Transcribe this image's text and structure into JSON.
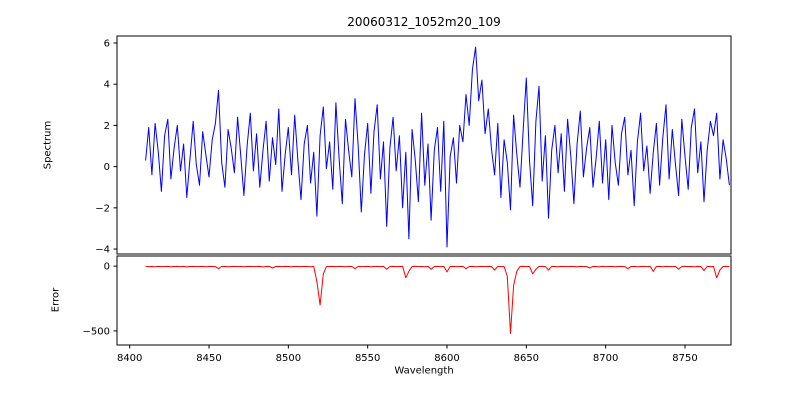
{
  "figure": {
    "title": "20060312_1052m20_109",
    "xlabel": "Wavelength",
    "background": "#ffffff",
    "xticks": [
      8400,
      8450,
      8500,
      8550,
      8600,
      8650,
      8700,
      8750
    ]
  },
  "chart_data": [
    {
      "type": "line",
      "name": "spectrum",
      "ylabel": "Spectrum",
      "color": "#0000ff",
      "grid": false,
      "legend": null,
      "xlim": [
        8392,
        8779
      ],
      "ylim": [
        -4.24,
        6.34
      ],
      "yticks": [
        -4,
        -2,
        0,
        2,
        4,
        6
      ],
      "x_start": 8410,
      "x_step": 2,
      "values": [
        0.3,
        1.9,
        -0.4,
        2.1,
        0.7,
        -1.2,
        1.5,
        2.3,
        -0.6,
        0.9,
        2.0,
        -0.2,
        1.1,
        -1.5,
        0.4,
        2.2,
        0.1,
        -0.9,
        1.7,
        0.6,
        -0.5,
        1.3,
        2.1,
        3.7,
        0.2,
        -1.0,
        1.8,
        0.9,
        -0.3,
        2.4,
        0.5,
        -1.4,
        1.0,
        2.6,
        -0.2,
        1.6,
        -1.0,
        0.8,
        2.2,
        -0.7,
        1.4,
        0.1,
        2.8,
        -1.2,
        0.6,
        1.9,
        -0.4,
        2.5,
        0.3,
        -1.6,
        1.1,
        2.0,
        -0.8,
        0.7,
        -2.4,
        1.5,
        2.9,
        -0.1,
        1.2,
        -1.1,
        3.1,
        0.4,
        -1.8,
        2.3,
        0.8,
        -0.5,
        3.3,
        1.0,
        -2.2,
        0.6,
        2.1,
        -1.3,
        1.7,
        3.0,
        -0.6,
        1.2,
        -2.9,
        0.9,
        2.4,
        -0.2,
        1.5,
        -2.0,
        0.7,
        -3.5,
        1.8,
        0.3,
        -1.7,
        2.6,
        -0.9,
        1.1,
        -2.6,
        0.8,
        1.9,
        -1.2,
        2.2,
        -3.9,
        0.5,
        1.4,
        -0.8,
        2.0,
        1.2,
        3.5,
        2.0,
        4.7,
        5.8,
        3.2,
        4.2,
        1.6,
        2.8,
        0.9,
        -0.4,
        2.1,
        -1.5,
        1.3,
        0.2,
        -2.1,
        2.5,
        0.6,
        -1.0,
        1.8,
        4.3,
        0.3,
        -1.9,
        2.2,
        3.9,
        -0.7,
        1.5,
        -2.5,
        0.8,
        2.0,
        -0.3,
        1.6,
        -1.2,
        2.3,
        0.5,
        -1.8,
        1.1,
        2.7,
        -0.5,
        0.9,
        1.9,
        -1.0,
        0.4,
        2.2,
        -0.8,
        1.3,
        -1.6,
        2.0,
        0.2,
        -0.9,
        1.6,
        2.4,
        -0.4,
        0.8,
        -1.9,
        1.2,
        2.6,
        -0.2,
        1.0,
        -1.3,
        0.7,
        2.1,
        -0.9,
        1.4,
        3.0,
        -0.6,
        1.8,
        0.1,
        -1.4,
        2.3,
        0.5,
        -1.1,
        1.9,
        2.8,
        -0.3,
        1.2,
        -1.7,
        0.8,
        2.2,
        1.5,
        2.6,
        -0.6,
        1.3,
        0.4,
        -0.9
      ]
    },
    {
      "type": "line",
      "name": "error",
      "ylabel": "Error",
      "color": "#ff0000",
      "grid": false,
      "legend": null,
      "xlim": [
        8392,
        8779
      ],
      "ylim": [
        -609,
        78
      ],
      "yticks": [
        0,
        -500
      ],
      "x_start": 8410,
      "x_step": 2,
      "values": [
        -2,
        -4,
        -3,
        -5,
        -2,
        -4,
        -3,
        -2,
        -5,
        -3,
        -2,
        -4,
        -2,
        -6,
        -3,
        -2,
        -4,
        -3,
        -2,
        -5,
        -3,
        -2,
        -4,
        -20,
        -3,
        -2,
        -5,
        -3,
        -2,
        -4,
        -2,
        -5,
        -3,
        -2,
        -4,
        -3,
        -2,
        -6,
        -3,
        -2,
        -15,
        -3,
        -2,
        -4,
        -2,
        -3,
        -5,
        -2,
        -3,
        -4,
        -2,
        -3,
        -5,
        -2,
        -120,
        -300,
        -60,
        -4,
        -3,
        -2,
        -4,
        -2,
        -3,
        -5,
        -2,
        -3,
        -20,
        -2,
        -4,
        -3,
        -2,
        -5,
        -3,
        -2,
        -4,
        -2,
        -25,
        -3,
        -2,
        -4,
        -3,
        -2,
        -90,
        -40,
        -3,
        -2,
        -4,
        -3,
        -5,
        -2,
        -25,
        -3,
        -2,
        -4,
        -2,
        -45,
        -3,
        -2,
        -4,
        -3,
        -2,
        -20,
        -3,
        -2,
        -5,
        -3,
        -2,
        -4,
        -2,
        -3,
        -30,
        -2,
        -4,
        -3,
        -80,
        -520,
        -150,
        -40,
        -3,
        -2,
        -4,
        -2,
        -60,
        -25,
        -3,
        -2,
        -4,
        -30,
        -2,
        -3,
        -5,
        -2,
        -3,
        -4,
        -2,
        -3,
        -5,
        -2,
        -4,
        -3,
        -15,
        -2,
        -3,
        -5,
        -2,
        -4,
        -3,
        -2,
        -5,
        -3,
        -2,
        -4,
        -20,
        -3,
        -2,
        -5,
        -3,
        -2,
        -4,
        -2,
        -40,
        -3,
        -2,
        -5,
        -2,
        -3,
        -4,
        -2,
        -25,
        -3,
        -2,
        -4,
        -3,
        -5,
        -2,
        -3,
        -35,
        -2,
        -4,
        -3,
        -90,
        -30,
        -3,
        -2,
        -4
      ]
    }
  ]
}
